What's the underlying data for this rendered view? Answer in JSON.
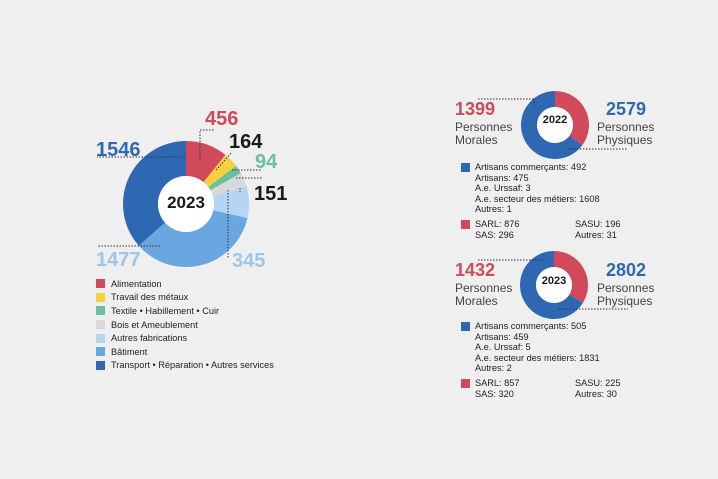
{
  "chart_data": [
    {
      "type": "pie",
      "center_label": "2023",
      "categories": [
        "Alimentation",
        "Travail des métaux",
        "Textile • Habillement • Cuir",
        "Bois et Ameublement",
        "Autres fabrications",
        "Bâtiment",
        "Transport • Réparation • Autres services"
      ],
      "values": [
        456,
        164,
        94,
        151,
        345,
        1477,
        1546
      ],
      "value_labels": [
        "456",
        "164",
        "94",
        "151",
        "345",
        "1477",
        "1546"
      ],
      "colors": [
        "#d04a5b",
        "#f5d140",
        "#6dbf9c",
        "#d9d9d9",
        "#b6d5f2",
        "#6aa6e0",
        "#2f68b2"
      ]
    },
    {
      "type": "pie",
      "center_label": "2022",
      "categories": [
        "Personnes Morales",
        "Personnes Physiques"
      ],
      "values": [
        1399,
        2579
      ],
      "colors": [
        "#d04a5b",
        "#2f68b2"
      ]
    },
    {
      "type": "pie",
      "center_label": "2023",
      "categories": [
        "Personnes Morales",
        "Personnes Physiques"
      ],
      "values": [
        1432,
        2802
      ],
      "colors": [
        "#d04a5b",
        "#2f68b2"
      ]
    }
  ],
  "panels": [
    {
      "year": "2022",
      "morales_value": "1399",
      "morales_line1": "Personnes",
      "morales_line2": "Morales",
      "physiques_value": "2579",
      "physiques_line1": "Personnes",
      "physiques_line2": "Physiques",
      "physiques_details": [
        "Artisans commerçants: 492",
        "Artisans: 475",
        "A.e. Urssaf: 3",
        "A.e. secteur des métiers: 1608",
        "Autres: 1"
      ],
      "morales_details": [
        "SARL: 876",
        "SAS: 296",
        "SASU: 196",
        "Autres: 31"
      ]
    },
    {
      "year": "2023",
      "morales_value": "1432",
      "morales_line1": "Personnes",
      "morales_line2": "Morales",
      "physiques_value": "2802",
      "physiques_line1": "Personnes",
      "physiques_line2": "Physiques",
      "physiques_details": [
        "Artisans commerçants: 505",
        "Artisans: 459",
        "A.e. Urssaf: 5",
        "A.e. secteur des métiers: 1831",
        "Autres: 2"
      ],
      "morales_details": [
        "SARL: 857",
        "SAS: 320",
        "SASU: 225",
        "Autres: 30"
      ]
    }
  ],
  "colors": {
    "red": "#d04a5b",
    "blue": "#2f68b2",
    "background": "#efefef"
  }
}
